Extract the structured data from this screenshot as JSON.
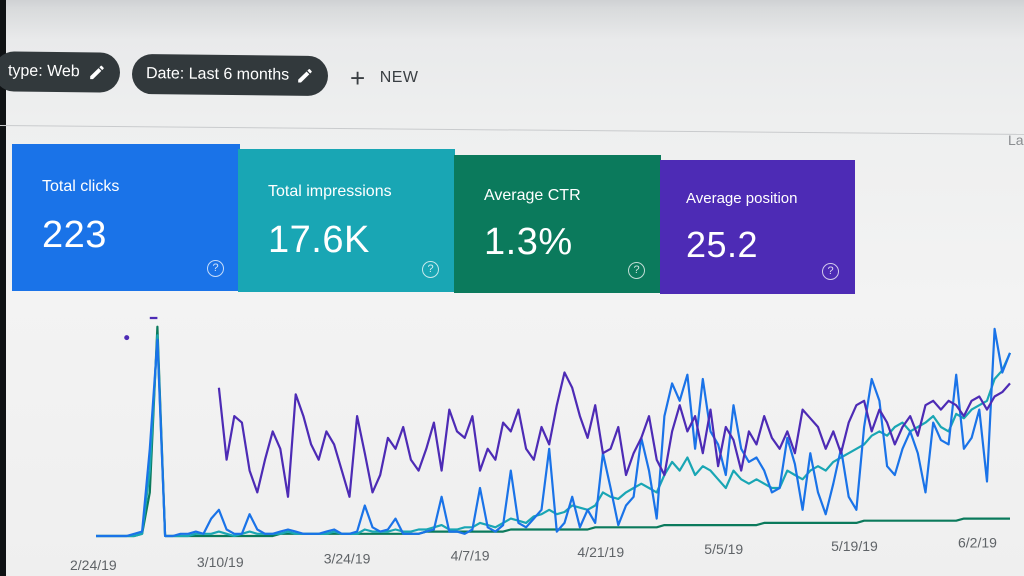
{
  "toolbar": {
    "type_chip_label": "type: Web",
    "date_chip_label": "Date: Last 6 months",
    "new_label": "NEW",
    "corner_text": "La"
  },
  "cards": {
    "clicks": {
      "title": "Total clicks",
      "value": "223",
      "color": "#1a73e8"
    },
    "impressions": {
      "title": "Total impressions",
      "value": "17.6K",
      "color": "#19a6b4"
    },
    "ctr": {
      "title": "Average CTR",
      "value": "1.3%",
      "color": "#0b7a5c"
    },
    "position": {
      "title": "Average position",
      "value": "25.2",
      "color": "#4d2bb5"
    }
  },
  "icons": {
    "pencil": "pencil-icon",
    "plus": "plus-icon",
    "help": "help-circle-icon"
  },
  "chart_data": {
    "type": "line",
    "title": "",
    "xlabel": "",
    "ylabel": "",
    "x_tick_labels": [
      "2/24/19",
      "3/10/19",
      "3/24/19",
      "4/7/19",
      "4/21/19",
      "5/5/19",
      "5/19/19",
      "6/2/19"
    ],
    "series": [
      {
        "color": "#1a73e8",
        "values": [
          0,
          0,
          0,
          0,
          0,
          1,
          2,
          40,
          90,
          0,
          0,
          1,
          1,
          2,
          1,
          8,
          12,
          3,
          1,
          1,
          10,
          3,
          1,
          1,
          2,
          3,
          2,
          1,
          1,
          1,
          2,
          3,
          1,
          1,
          2,
          14,
          4,
          2,
          3,
          8,
          1,
          1,
          1,
          2,
          3,
          18,
          2,
          2,
          1,
          3,
          22,
          4,
          2,
          5,
          30,
          6,
          4,
          8,
          12,
          40,
          2,
          6,
          18,
          4,
          12,
          6,
          38,
          22,
          5,
          14,
          18,
          45,
          30,
          8,
          55,
          70,
          62,
          74,
          40,
          72,
          48,
          42,
          28,
          60,
          40,
          34,
          36,
          30,
          20,
          22,
          45,
          33,
          12,
          38,
          20,
          10,
          24,
          40,
          18,
          12,
          50,
          72,
          62,
          32,
          28,
          40,
          48,
          38,
          20,
          52,
          44,
          42,
          74,
          40,
          45,
          58,
          25,
          95,
          75,
          84
        ]
      },
      {
        "color": "#19a6b4",
        "values": [
          0,
          0,
          0,
          0,
          0,
          0,
          1,
          30,
          92,
          0,
          0,
          0,
          0,
          1,
          1,
          1,
          2,
          1,
          0,
          1,
          2,
          1,
          1,
          1,
          1,
          2,
          1,
          1,
          1,
          1,
          1,
          2,
          1,
          1,
          1,
          3,
          2,
          2,
          2,
          3,
          2,
          2,
          3,
          3,
          4,
          5,
          3,
          3,
          4,
          4,
          6,
          5,
          4,
          6,
          8,
          7,
          6,
          9,
          10,
          12,
          10,
          11,
          14,
          13,
          12,
          14,
          20,
          18,
          17,
          20,
          22,
          24,
          22,
          20,
          28,
          34,
          30,
          36,
          28,
          32,
          30,
          26,
          22,
          30,
          26,
          24,
          26,
          24,
          22,
          22,
          30,
          28,
          26,
          30,
          32,
          30,
          34,
          36,
          38,
          40,
          42,
          46,
          48,
          46,
          50,
          52,
          48,
          50,
          52,
          55,
          50,
          48,
          56,
          54,
          58,
          60,
          62,
          72,
          76,
          84
        ]
      },
      {
        "color": "#0b7a5c",
        "values": [
          0,
          0,
          0,
          0,
          0,
          0,
          1,
          20,
          96,
          0,
          0,
          0,
          0,
          0,
          0,
          0,
          0,
          0,
          0,
          0,
          0,
          0,
          0,
          0,
          1,
          1,
          1,
          1,
          1,
          1,
          1,
          1,
          1,
          1,
          1,
          1,
          1,
          1,
          1,
          1,
          1,
          1,
          1,
          2,
          2,
          2,
          2,
          2,
          2,
          2,
          2,
          2,
          2,
          2,
          3,
          3,
          3,
          3,
          3,
          3,
          3,
          3,
          3,
          3,
          3,
          4,
          4,
          4,
          4,
          4,
          4,
          4,
          4,
          4,
          5,
          5,
          5,
          5,
          5,
          5,
          5,
          5,
          5,
          5,
          5,
          5,
          5,
          6,
          6,
          6,
          6,
          6,
          6,
          6,
          6,
          6,
          6,
          6,
          6,
          6,
          7,
          7,
          7,
          7,
          7,
          7,
          7,
          7,
          7,
          7,
          7,
          7,
          7,
          8,
          8,
          8,
          8,
          8,
          8,
          8
        ]
      },
      {
        "color": "#4d2bb5",
        "values": [
          null,
          null,
          null,
          null,
          null,
          null,
          null,
          100,
          100,
          null,
          null,
          null,
          null,
          null,
          88,
          null,
          68,
          35,
          55,
          52,
          30,
          20,
          35,
          48,
          40,
          18,
          65,
          55,
          42,
          35,
          48,
          42,
          30,
          18,
          55,
          38,
          20,
          28,
          45,
          40,
          50,
          35,
          30,
          40,
          52,
          30,
          58,
          48,
          45,
          55,
          30,
          40,
          35,
          52,
          48,
          58,
          40,
          35,
          50,
          42,
          60,
          75,
          68,
          55,
          45,
          60,
          38,
          40,
          50,
          28,
          38,
          45,
          55,
          35,
          28,
          48,
          60,
          48,
          55,
          38,
          58,
          32,
          50,
          44,
          30,
          48,
          42,
          55,
          45,
          40,
          48,
          38,
          58,
          54,
          50,
          40,
          48,
          38,
          52,
          60,
          62,
          48,
          58,
          52,
          42,
          50,
          55,
          46,
          60,
          62,
          58,
          62,
          60,
          55,
          62,
          64,
          58,
          64,
          66,
          70
        ]
      }
    ]
  }
}
